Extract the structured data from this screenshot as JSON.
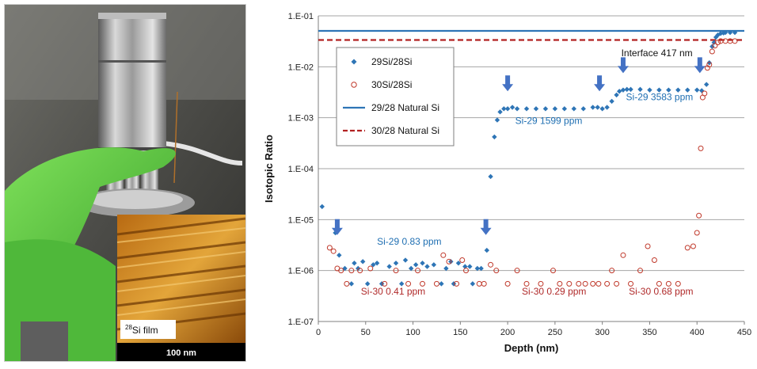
{
  "photo": {
    "film_label": "Si film",
    "film_superscript": "28",
    "scale_bar_label": "100 nm"
  },
  "chart_data": {
    "type": "scatter",
    "title": "",
    "xlabel": "Depth (nm)",
    "ylabel": "Isotopic Ratio",
    "xlim": [
      0,
      450
    ],
    "ylim": [
      1e-07,
      0.1
    ],
    "yscale": "log",
    "x_ticks": [
      0,
      50,
      100,
      150,
      200,
      250,
      300,
      350,
      400,
      450
    ],
    "y_ticks": [
      1e-07,
      1e-06,
      1e-05,
      0.0001,
      0.001,
      0.01,
      0.1
    ],
    "y_tick_labels": [
      "1.E-07",
      "1.E-06",
      "1.E-05",
      "1.E-04",
      "1.E-03",
      "1.E-02",
      "1.E-01"
    ],
    "grid": true,
    "legend_position": "upper-left",
    "series": [
      {
        "name": "29Si/28Si",
        "kind": "scatter",
        "marker": "diamond-filled",
        "color": "#2e75b6",
        "x": [
          4,
          18,
          22,
          28,
          35,
          38,
          42,
          47,
          52,
          58,
          62,
          67,
          75,
          82,
          88,
          92,
          98,
          103,
          110,
          115,
          122,
          130,
          135,
          140,
          143,
          148,
          155,
          160,
          163,
          168,
          172,
          178,
          182,
          186,
          189,
          192,
          196,
          200,
          205,
          210,
          220,
          230,
          240,
          250,
          260,
          270,
          280,
          290,
          295,
          300,
          305,
          310,
          315,
          318,
          322,
          326,
          330,
          340,
          350,
          360,
          370,
          380,
          390,
          400,
          405,
          410,
          413,
          416,
          418,
          420,
          422,
          425,
          428,
          430,
          435,
          440
        ],
        "y": [
          1.8e-05,
          5.5e-06,
          2e-06,
          1.1e-06,
          5.5e-07,
          1.4e-06,
          1.1e-06,
          1.5e-06,
          5.5e-07,
          1.3e-06,
          1.4e-06,
          5.5e-07,
          1.2e-06,
          1.4e-06,
          5.5e-07,
          1.6e-06,
          1.1e-06,
          1.3e-06,
          1.4e-06,
          1.2e-06,
          1.3e-06,
          5.5e-07,
          1.1e-06,
          1.5e-06,
          5.5e-07,
          1.4e-06,
          1.2e-06,
          1.2e-06,
          5.5e-07,
          1.1e-06,
          1.1e-06,
          2.5e-06,
          7e-05,
          0.00042,
          0.0009,
          0.0013,
          0.0015,
          0.0015,
          0.0016,
          0.0015,
          0.0015,
          0.0015,
          0.0015,
          0.0015,
          0.0015,
          0.0015,
          0.0015,
          0.0016,
          0.0016,
          0.0015,
          0.0016,
          0.0021,
          0.0028,
          0.0033,
          0.0035,
          0.0036,
          0.0036,
          0.0036,
          0.0035,
          0.0035,
          0.0035,
          0.0035,
          0.0035,
          0.0035,
          0.0034,
          0.0045,
          0.012,
          0.025,
          0.03,
          0.038,
          0.042,
          0.045,
          0.046,
          0.047,
          0.047,
          0.047
        ]
      },
      {
        "name": "30Si/28Si",
        "kind": "scatter",
        "marker": "circle-open",
        "color": "#c0392b",
        "x": [
          12,
          16,
          20,
          24,
          30,
          35,
          44,
          55,
          70,
          82,
          95,
          105,
          110,
          125,
          132,
          138,
          146,
          152,
          156,
          170,
          175,
          182,
          188,
          200,
          210,
          220,
          235,
          248,
          255,
          265,
          275,
          282,
          290,
          296,
          305,
          310,
          315,
          322,
          330,
          340,
          348,
          355,
          360,
          370,
          380,
          390,
          396,
          400,
          402,
          404,
          406,
          408,
          411,
          413,
          416,
          419,
          422,
          425,
          430,
          435,
          440
        ],
        "y": [
          2.8e-06,
          2.4e-06,
          1.1e-06,
          1e-06,
          5.5e-07,
          1e-06,
          1e-06,
          1.1e-06,
          5.5e-07,
          1e-06,
          5.5e-07,
          1e-06,
          5.5e-07,
          5.5e-07,
          2e-06,
          1.5e-06,
          5.5e-07,
          1.6e-06,
          1e-06,
          5.5e-07,
          5.5e-07,
          1.3e-06,
          1e-06,
          5.5e-07,
          1e-06,
          5.5e-07,
          5.5e-07,
          1e-06,
          5.5e-07,
          5.5e-07,
          5.5e-07,
          5.5e-07,
          5.5e-07,
          5.5e-07,
          5.5e-07,
          1e-06,
          5.5e-07,
          2e-06,
          5.5e-07,
          1e-06,
          3e-06,
          1.6e-06,
          5.5e-07,
          5.5e-07,
          5.5e-07,
          2.8e-06,
          3e-06,
          5.5e-06,
          1.2e-05,
          0.00025,
          0.0025,
          0.003,
          0.0095,
          0.011,
          0.02,
          0.026,
          0.03,
          0.032,
          0.032,
          0.032,
          0.032
        ]
      },
      {
        "name": "29/28 Natural Si",
        "kind": "hline",
        "style": "solid",
        "color": "#2e75b6",
        "y": 0.0506
      },
      {
        "name": "30/28 Natural Si",
        "kind": "hline",
        "style": "dashed",
        "color": "#b22222",
        "y": 0.0336
      }
    ],
    "arrows": [
      {
        "x": 20,
        "y": 5e-06
      },
      {
        "x": 177,
        "y": 5e-06
      },
      {
        "x": 200,
        "y": 0.0033
      },
      {
        "x": 297,
        "y": 0.0033
      },
      {
        "x": 322,
        "y": 0.0075
      },
      {
        "x": 403,
        "y": 0.0075
      }
    ],
    "annotations": [
      {
        "text": "Interface 417 nm",
        "x": 320,
        "y": 0.016,
        "color": "black"
      },
      {
        "text": "Si-29  3583 ppm",
        "x": 325,
        "y": 0.0022,
        "color": "blue"
      },
      {
        "text": "Si-29  1599 ppm",
        "x": 208,
        "y": 0.00075,
        "color": "blue"
      },
      {
        "text": "Si-29  0.83 ppm",
        "x": 62,
        "y": 3.2e-06,
        "color": "blue"
      },
      {
        "text": "Si-30  0.41 ppm",
        "x": 45,
        "y": 3.4e-07,
        "color": "red"
      },
      {
        "text": "Si-30  0.29 ppm",
        "x": 215,
        "y": 3.4e-07,
        "color": "red"
      },
      {
        "text": "Si-30  0.68 ppm",
        "x": 328,
        "y": 3.4e-07,
        "color": "red"
      }
    ]
  }
}
